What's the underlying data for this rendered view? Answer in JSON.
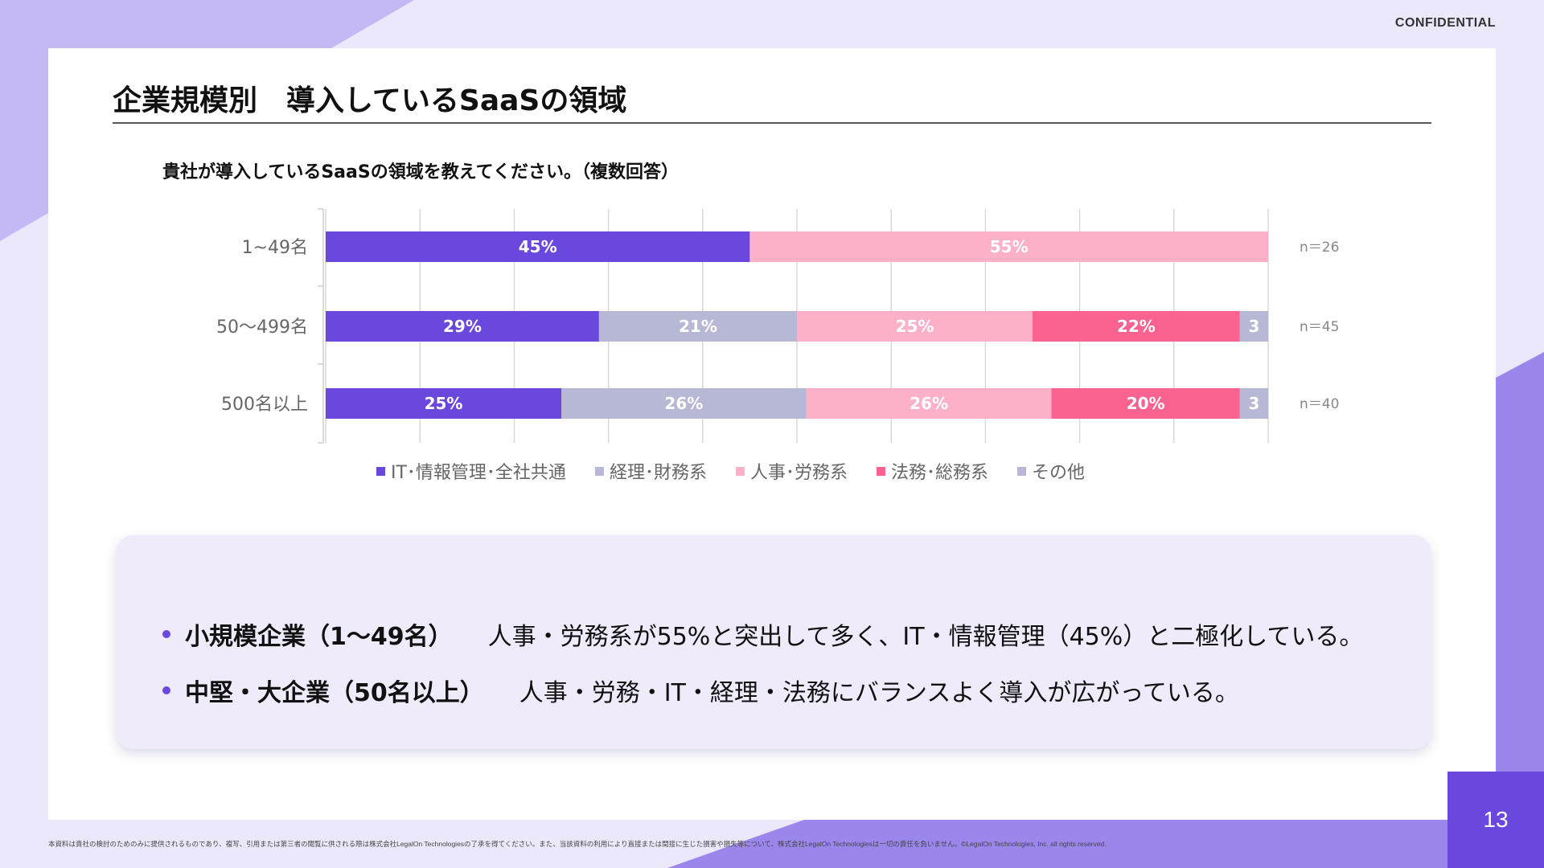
{
  "header": {
    "confidential": "CONFIDENTIAL"
  },
  "title": "企業規模別　導入しているSaaSの領域",
  "question": "貴社が導入しているSaaSの領域を教えてください。（複数回答）",
  "colors": {
    "accent": "#6a48de",
    "lavender": "#b7b7d6",
    "pink_light": "#fcb1c9",
    "pink": "#fa628f"
  },
  "chart_data": {
    "type": "bar",
    "orientation": "horizontal",
    "stacked": true,
    "percent_stacked": true,
    "categories": [
      "1~49名",
      "50～499名",
      "500名以上"
    ],
    "sample_sizes": [
      "n＝26",
      "n＝45",
      "n＝40"
    ],
    "xlim": [
      0,
      100
    ],
    "grid": true,
    "legend": "bottom",
    "series": [
      {
        "name": "IT･情報管理･全社共通",
        "color": "#6a48de",
        "values": [
          45,
          29,
          25
        ],
        "labels": [
          "45%",
          "29%",
          "25%"
        ]
      },
      {
        "name": "経理･財務系",
        "color": "#b7b7d6",
        "values": [
          0,
          21,
          26
        ],
        "labels": [
          "",
          "21%",
          "26%"
        ]
      },
      {
        "name": "人事･労務系",
        "color": "#fcb1c9",
        "values": [
          55,
          25,
          26
        ],
        "labels": [
          "55%",
          "25%",
          "26%"
        ]
      },
      {
        "name": "法務･総務系",
        "color": "#fa628f",
        "values": [
          0,
          22,
          20
        ],
        "labels": [
          "",
          "22%",
          "20%"
        ]
      },
      {
        "name": "その他",
        "color": "#b7b7d6",
        "values": [
          0,
          3,
          3
        ],
        "labels": [
          "",
          "3",
          "3"
        ]
      }
    ]
  },
  "summary": [
    {
      "head": "小規模企業（1～49名）",
      "body": "人事・労務系が55%と突出して多く、IT・情報管理（45%）と二極化している。"
    },
    {
      "head": "中堅・大企業（50名以上）",
      "body": "人事・労務・IT・経理・法務にバランスよく導入が広がっている。"
    }
  ],
  "footer": {
    "note": "本資料は貴社の検討のためのみに提供されるものであり、複写、引用または第三者の閲覧に供される際は株式会社LegalOn Technologiesの了承を得てください。また、当該資料の利用により直接または間接に生じた損害や損失等について、株式会社LegalOn Technologiesは一切の責任を負いません。©LegalOn Technologies, Inc. all rights reserved.",
    "page": "13"
  }
}
